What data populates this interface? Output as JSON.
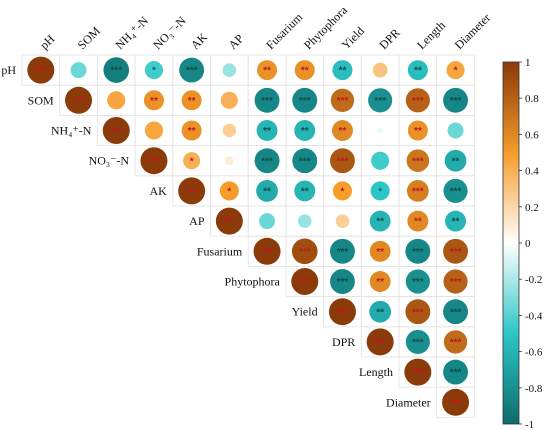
{
  "chart_data": {
    "type": "heatmap",
    "subtype": "correlation-upper-triangle-circles",
    "title": "",
    "variables": [
      "pH",
      "SOM",
      "NH4+-N",
      "NO3−-N",
      "AK",
      "AP",
      "Fusarium",
      "Phytophora",
      "Yield",
      "DPR",
      "Length",
      "Diameter"
    ],
    "column_labels": [
      "pH",
      "SOM",
      "NH₄⁺-N",
      "NO₃⁻-N",
      "AK",
      "AP",
      "Fusarium",
      "Phytophora",
      "Yield",
      "DPR",
      "Length",
      "Diameter"
    ],
    "row_labels": [
      "pH",
      "SOM",
      "NH₄⁺-N",
      "NO₃⁻-N",
      "AK",
      "AP",
      "Fusarium",
      "Phytophora",
      "Yield",
      "DPR",
      "Length",
      "Diameter"
    ],
    "colorbar": {
      "range": [
        -1,
        1
      ],
      "ticks": [
        "1",
        "0.8",
        "0.6",
        "0.4",
        "0.2",
        "0",
        "-0.2",
        "-0.4",
        "-0.6",
        "-0.8",
        "-1"
      ],
      "colors": {
        "negative": "#0e6b6b",
        "mid_negative": "#2cc6c6",
        "zero": "#ffffff",
        "mid_positive": "#f59c2a",
        "positive": "#8b3a0a"
      }
    },
    "matrix": [
      [
        1.0,
        -0.35,
        -0.9,
        -0.45,
        -0.85,
        -0.25,
        0.55,
        0.55,
        -0.55,
        0.3,
        -0.55,
        0.45
      ],
      [
        null,
        1.0,
        0.45,
        0.55,
        0.55,
        0.4,
        -0.85,
        -0.85,
        0.75,
        -0.8,
        0.8,
        -0.85
      ],
      [
        null,
        null,
        1.0,
        0.45,
        0.55,
        0.25,
        -0.6,
        -0.6,
        0.6,
        -0.05,
        0.55,
        -0.35
      ],
      [
        null,
        null,
        null,
        1.0,
        0.4,
        0.1,
        -0.85,
        -0.85,
        0.85,
        -0.45,
        0.7,
        -0.65
      ],
      [
        null,
        null,
        null,
        null,
        1.0,
        0.5,
        -0.65,
        -0.6,
        0.5,
        -0.5,
        0.65,
        -0.8
      ],
      [
        null,
        null,
        null,
        null,
        null,
        1.0,
        -0.35,
        -0.25,
        0.25,
        -0.6,
        0.6,
        -0.6
      ],
      [
        null,
        null,
        null,
        null,
        null,
        null,
        1.0,
        0.9,
        -0.85,
        0.6,
        -0.85,
        0.85
      ],
      [
        null,
        null,
        null,
        null,
        null,
        null,
        null,
        1.0,
        -0.85,
        0.6,
        -0.8,
        0.8
      ],
      [
        null,
        null,
        null,
        null,
        null,
        null,
        null,
        null,
        1.0,
        -0.65,
        0.85,
        -0.85
      ],
      [
        null,
        null,
        null,
        null,
        null,
        null,
        null,
        null,
        null,
        1.0,
        -0.8,
        0.75
      ],
      [
        null,
        null,
        null,
        null,
        null,
        null,
        null,
        null,
        null,
        null,
        1.0,
        -0.85
      ],
      [
        null,
        null,
        null,
        null,
        null,
        null,
        null,
        null,
        null,
        null,
        null,
        1.0
      ]
    ],
    "significance": [
      [
        "***",
        "",
        "***",
        "*",
        "***",
        "",
        "**",
        "**",
        "**",
        "",
        "**",
        "*"
      ],
      [
        "",
        "***",
        "",
        "**",
        "**",
        "",
        "***",
        "***",
        "***",
        "***",
        "***",
        "***"
      ],
      [
        "",
        "",
        "***",
        "",
        "**",
        "",
        "**",
        "**",
        "**",
        "",
        "**",
        ""
      ],
      [
        "",
        "",
        "",
        "***",
        "*",
        "",
        "***",
        "***",
        "***",
        "",
        "***",
        "**"
      ],
      [
        "",
        "",
        "",
        "",
        "***",
        "*",
        "**",
        "**",
        "*",
        "*",
        "***",
        "***"
      ],
      [
        "",
        "",
        "",
        "",
        "",
        "***",
        "",
        "",
        "",
        "**",
        "**",
        "**"
      ],
      [
        "",
        "",
        "",
        "",
        "",
        "",
        "***",
        "***",
        "***",
        "**",
        "***",
        "***"
      ],
      [
        "",
        "",
        "",
        "",
        "",
        "",
        "",
        "***",
        "***",
        "**",
        "***",
        "***"
      ],
      [
        "",
        "",
        "",
        "",
        "",
        "",
        "",
        "",
        "***",
        "**",
        "***",
        "***"
      ],
      [
        "",
        "",
        "",
        "",
        "",
        "",
        "",
        "",
        "",
        "***",
        "***",
        "***"
      ],
      [
        "",
        "",
        "",
        "",
        "",
        "",
        "",
        "",
        "",
        "",
        "***",
        "***"
      ],
      [
        "",
        "",
        "",
        "",
        "",
        "",
        "",
        "",
        "",
        "",
        "",
        "***"
      ]
    ]
  }
}
